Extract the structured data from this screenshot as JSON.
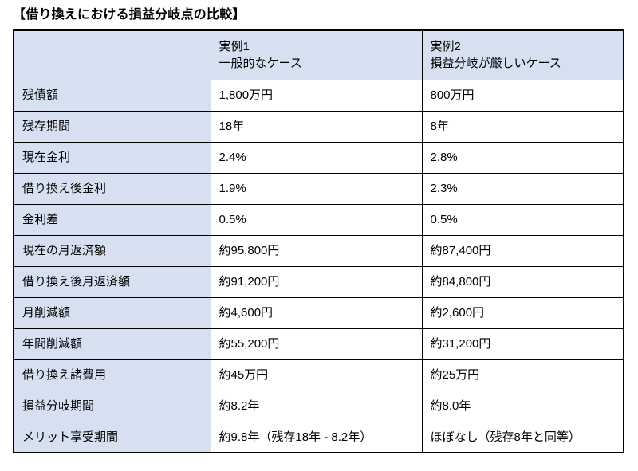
{
  "title": "【借り換えにおける損益分岐点の比較】",
  "colors": {
    "header_bg": "#d6e0f0",
    "row_label_bg": "#d6e0f0",
    "cell_bg": "#ffffff",
    "border": "#000000",
    "text": "#000000"
  },
  "table": {
    "headers": {
      "corner": "",
      "case1": "実例1\n一般的なケース",
      "case2": "実例2\n損益分岐が厳しいケース"
    },
    "rows": [
      {
        "label": "残債額",
        "case1": "1,800万円",
        "case2": "800万円"
      },
      {
        "label": "残存期間",
        "case1": "18年",
        "case2": "8年"
      },
      {
        "label": "現在金利",
        "case1": "2.4%",
        "case2": "2.8%"
      },
      {
        "label": "借り換え後金利",
        "case1": "1.9%",
        "case2": "2.3%"
      },
      {
        "label": "金利差",
        "case1": "0.5%",
        "case2": "0.5%"
      },
      {
        "label": "現在の月返済額",
        "case1": "約95,800円",
        "case2": "約87,400円"
      },
      {
        "label": "借り換え後月返済額",
        "case1": "約91,200円",
        "case2": "約84,800円"
      },
      {
        "label": "月削減額",
        "case1": "約4,600円",
        "case2": "約2,600円"
      },
      {
        "label": "年間削減額",
        "case1": "約55,200円",
        "case2": "約31,200円"
      },
      {
        "label": "借り換え諸費用",
        "case1": "約45万円",
        "case2": "約25万円"
      },
      {
        "label": "損益分岐期間",
        "case1": "約8.2年",
        "case2": "約8.0年"
      },
      {
        "label": "メリット享受期間",
        "case1": "約9.8年（残存18年 - 8.2年）",
        "case2": "ほぼなし（残存8年と同等）"
      }
    ]
  }
}
